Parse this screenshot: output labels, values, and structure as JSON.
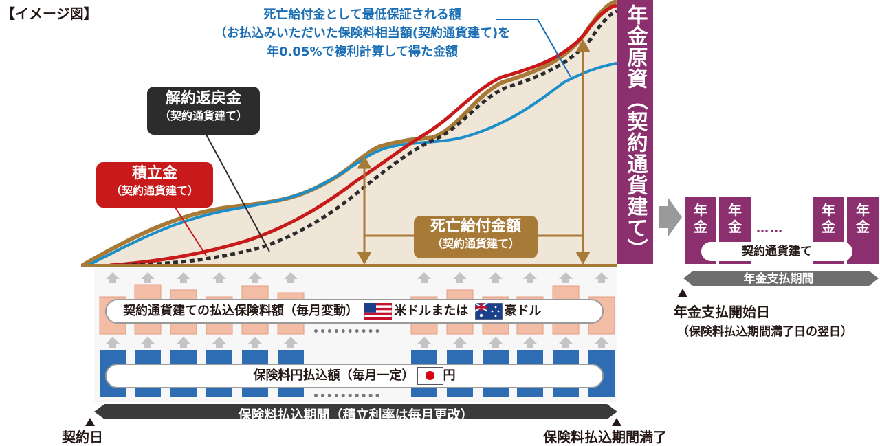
{
  "header": {
    "tag": "【イメージ図】"
  },
  "annotations": {
    "min_death_benefit": {
      "line1": "死亡給付金として最低保証される額",
      "line2": "（お払込みいただいた保険料相当額(契約通貨建て)を",
      "line3": "年0.05%で複利計算して得た金額"
    },
    "surrender": {
      "title": "解約返戻金",
      "sub": "（契約通貨建て）"
    },
    "accumulation": {
      "title": "積立金",
      "sub": "（契約通貨建て）"
    },
    "death_benefit": {
      "title": "死亡給付金額",
      "sub": "（契約通貨建て）"
    }
  },
  "annuity_principal": {
    "label": "年金原資（契約通貨建て）"
  },
  "annuity": {
    "cell_label_line1": "年",
    "cell_label_line2": "金",
    "dots": "……",
    "currency": "契約通貨建て",
    "payment_period": "年金支払期間",
    "start_date": "年金支払開始日",
    "start_date_note": "（保険料払込期間満了日の翌日）"
  },
  "premium": {
    "fx_label": "契約通貨建ての払込保険料額（毎月変動）",
    "usd": "米ドルまたは",
    "aud": "豪ドル",
    "yen_label": "保険料円払込額（毎月一定）",
    "yen_unit": "円",
    "dots": "••••••••••",
    "period": "保険料払込期間（積立利率は毎月更改）"
  },
  "timeline": {
    "contract_date": "契約日",
    "maturity": "保険料払込期間満了"
  },
  "colors": {
    "accumulation": "#c81a1a",
    "surrender": "#2c2c2c",
    "min_guarantee": "#1a8fc9",
    "death_benefit": "#a87a38",
    "annuity": "#8b2f6f",
    "yen_block": "#2e6db4",
    "fx_block": "#f2bca5"
  }
}
